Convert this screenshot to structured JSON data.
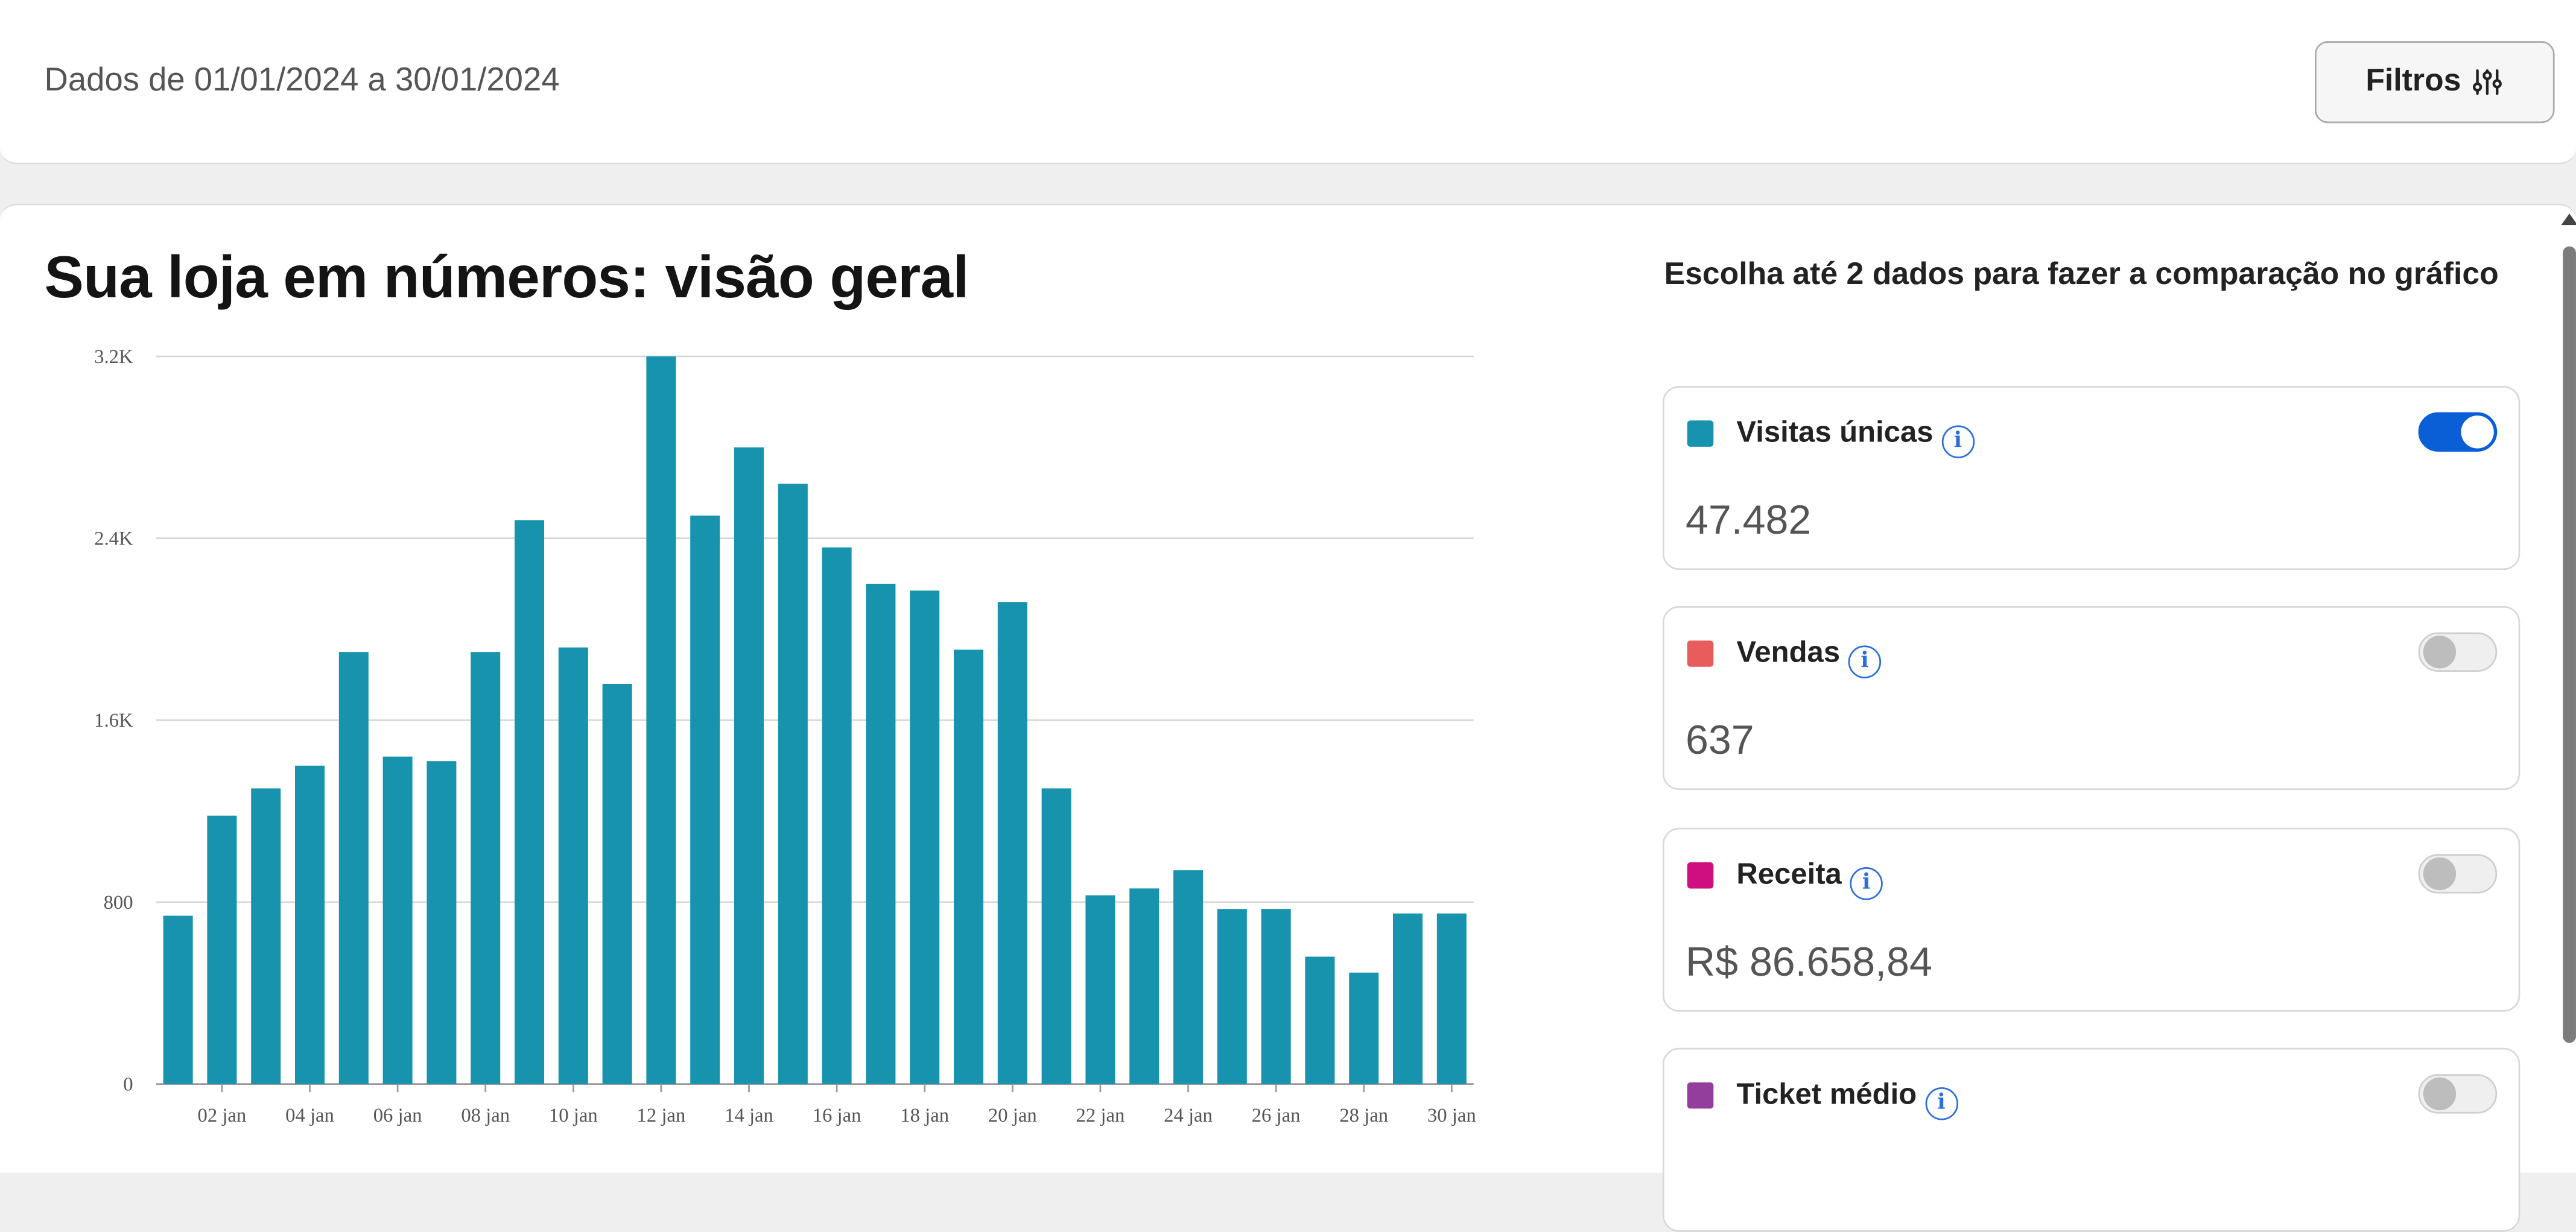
{
  "header": {
    "date_range": "Dados de 01/01/2024 a 30/01/2024",
    "filter_button": "Filtros",
    "filter_icon": "sliders-icon"
  },
  "main": {
    "title": "Sua loja em números: visão geral"
  },
  "comparison": {
    "title": "Escolha até 2 dados para fazer a comparação no gráfico",
    "metrics": [
      {
        "label": "Visitas únicas",
        "value": "47.482",
        "color": "#1793ad",
        "enabled": true
      },
      {
        "label": "Vendas",
        "value": "637",
        "color": "#e85c5c",
        "enabled": false
      },
      {
        "label": "Receita",
        "value": "R$ 86.658,84",
        "color": "#cf0f7f",
        "enabled": false
      },
      {
        "label": "Ticket médio",
        "value": "",
        "color": "#933d9c",
        "enabled": false
      }
    ],
    "info_icon_glyph": "i"
  },
  "chart_data": {
    "type": "bar",
    "x": [
      "01 jan",
      "02 jan",
      "03 jan",
      "04 jan",
      "05 jan",
      "06 jan",
      "07 jan",
      "08 jan",
      "09 jan",
      "10 jan",
      "11 jan",
      "12 jan",
      "13 jan",
      "14 jan",
      "15 jan",
      "16 jan",
      "17 jan",
      "18 jan",
      "19 jan",
      "20 jan",
      "21 jan",
      "22 jan",
      "23 jan",
      "24 jan",
      "25 jan",
      "26 jan",
      "27 jan",
      "28 jan",
      "29 jan",
      "30 jan"
    ],
    "x_tick_labels": [
      "02 jan",
      "04 jan",
      "06 jan",
      "08 jan",
      "10 jan",
      "12 jan",
      "14 jan",
      "16 jan",
      "18 jan",
      "20 jan",
      "22 jan",
      "24 jan",
      "26 jan",
      "28 jan",
      "30 jan"
    ],
    "series": [
      {
        "name": "Visitas únicas",
        "color": "#1793ad",
        "values": [
          740,
          1180,
          1300,
          1400,
          1900,
          1440,
          1420,
          1900,
          2480,
          1920,
          1760,
          3200,
          2500,
          2800,
          2640,
          2360,
          2200,
          2170,
          1910,
          2120,
          1300,
          830,
          860,
          940,
          770,
          770,
          560,
          490,
          750,
          750
        ]
      }
    ],
    "y_ticks": [
      0,
      800,
      1600,
      2400,
      3200
    ],
    "y_tick_labels": [
      "0",
      "800",
      "1.6K",
      "2.4K",
      "3.2K"
    ],
    "ylim": [
      0,
      3200
    ],
    "grid": true,
    "legend": "none"
  }
}
